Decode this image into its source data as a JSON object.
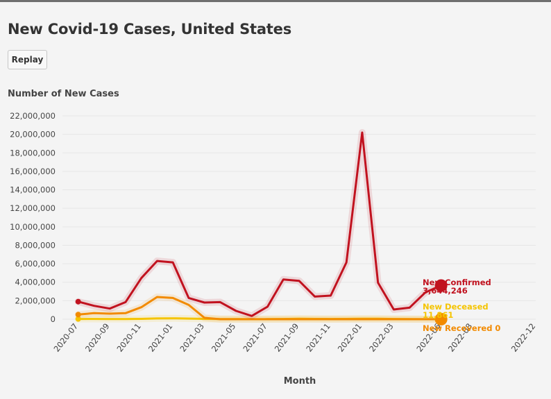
{
  "title": "New Covid-19 Cases, United States",
  "replay_label": "Replay",
  "chart_data": {
    "type": "line",
    "title": "New Covid-19 Cases, United States",
    "ylabel": "Number of New Cases",
    "xlabel": "Month",
    "ylim": [
      0,
      22000000
    ],
    "y_ticks": [
      0,
      2000000,
      4000000,
      6000000,
      8000000,
      10000000,
      12000000,
      14000000,
      16000000,
      18000000,
      20000000,
      22000000
    ],
    "y_tick_labels": [
      "0",
      "2,000,000",
      "4,000,000",
      "6,000,000",
      "8,000,000",
      "10,000,000",
      "12,000,000",
      "14,000,000",
      "16,000,000",
      "18,000,000",
      "20,000,000",
      "22,000,000"
    ],
    "x_ticks": [
      "2020-07",
      "2020-09",
      "2020-11",
      "2021-01",
      "2021-03",
      "2021-05",
      "2021-07",
      "2021-09",
      "2021-11",
      "2022-01",
      "2022-03",
      "2022-06",
      "2022-08",
      "2022-12"
    ],
    "x_range": [
      "2020-06",
      "2022-12"
    ],
    "grid": true,
    "legend": "end-of-line labels",
    "x": [
      "2020-07",
      "2020-08",
      "2020-09",
      "2020-10",
      "2020-11",
      "2020-12",
      "2021-01",
      "2021-02",
      "2021-03",
      "2021-04",
      "2021-05",
      "2021-06",
      "2021-07",
      "2021-08",
      "2021-09",
      "2021-10",
      "2021-11",
      "2021-12",
      "2022-01",
      "2022-02",
      "2022-03",
      "2022-04",
      "2022-05",
      "2022-06"
    ],
    "series": [
      {
        "name": "New Confirmed",
        "color": "#c1121f",
        "end_value_label": "3,644,246",
        "values": [
          1900000,
          1450000,
          1150000,
          1850000,
          4450000,
          6300000,
          6150000,
          2300000,
          1800000,
          1850000,
          900000,
          350000,
          1350000,
          4300000,
          4150000,
          2450000,
          2550000,
          6150000,
          20200000,
          3950000,
          1050000,
          1250000,
          2900000,
          3644246
        ]
      },
      {
        "name": "New Deceased",
        "color": "#f5c400",
        "end_value_label": "11,861",
        "values": [
          26000,
          30000,
          25000,
          24000,
          37000,
          80000,
          95000,
          68000,
          35000,
          22000,
          17000,
          10000,
          14000,
          30000,
          60000,
          40000,
          30000,
          38000,
          60000,
          55000,
          30000,
          15000,
          10000,
          11861
        ]
      },
      {
        "name": "New Recovered",
        "color": "#f28a00",
        "end_value_label": "0",
        "values": [
          500000,
          650000,
          600000,
          650000,
          1300000,
          2400000,
          2300000,
          1550000,
          150000,
          0,
          0,
          0,
          0,
          0,
          0,
          0,
          0,
          0,
          0,
          0,
          0,
          0,
          0,
          0
        ]
      }
    ]
  }
}
